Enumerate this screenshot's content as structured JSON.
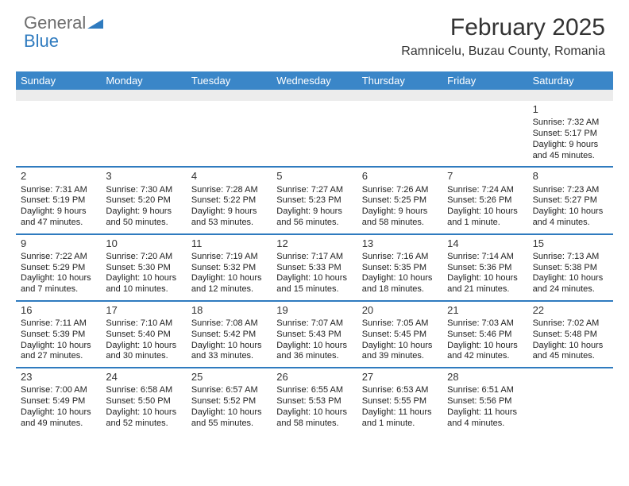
{
  "brand": {
    "word1": "General",
    "word2": "Blue"
  },
  "title": "February 2025",
  "location": "Ramnicelu, Buzau County, Romania",
  "colors": {
    "accent": "#3a86c8",
    "divider": "#2f7bbf",
    "text": "#333333",
    "spacer": "#ececec"
  },
  "layout": {
    "columns": 7,
    "cell_fontsize": 11,
    "daynum_fontsize": 13,
    "header_fontsize": 13
  },
  "day_headers": [
    "Sunday",
    "Monday",
    "Tuesday",
    "Wednesday",
    "Thursday",
    "Friday",
    "Saturday"
  ],
  "weeks": [
    [
      null,
      null,
      null,
      null,
      null,
      null,
      {
        "n": "1",
        "sr": "Sunrise: 7:32 AM",
        "ss": "Sunset: 5:17 PM",
        "d1": "Daylight: 9 hours",
        "d2": "and 45 minutes."
      }
    ],
    [
      {
        "n": "2",
        "sr": "Sunrise: 7:31 AM",
        "ss": "Sunset: 5:19 PM",
        "d1": "Daylight: 9 hours",
        "d2": "and 47 minutes."
      },
      {
        "n": "3",
        "sr": "Sunrise: 7:30 AM",
        "ss": "Sunset: 5:20 PM",
        "d1": "Daylight: 9 hours",
        "d2": "and 50 minutes."
      },
      {
        "n": "4",
        "sr": "Sunrise: 7:28 AM",
        "ss": "Sunset: 5:22 PM",
        "d1": "Daylight: 9 hours",
        "d2": "and 53 minutes."
      },
      {
        "n": "5",
        "sr": "Sunrise: 7:27 AM",
        "ss": "Sunset: 5:23 PM",
        "d1": "Daylight: 9 hours",
        "d2": "and 56 minutes."
      },
      {
        "n": "6",
        "sr": "Sunrise: 7:26 AM",
        "ss": "Sunset: 5:25 PM",
        "d1": "Daylight: 9 hours",
        "d2": "and 58 minutes."
      },
      {
        "n": "7",
        "sr": "Sunrise: 7:24 AM",
        "ss": "Sunset: 5:26 PM",
        "d1": "Daylight: 10 hours",
        "d2": "and 1 minute."
      },
      {
        "n": "8",
        "sr": "Sunrise: 7:23 AM",
        "ss": "Sunset: 5:27 PM",
        "d1": "Daylight: 10 hours",
        "d2": "and 4 minutes."
      }
    ],
    [
      {
        "n": "9",
        "sr": "Sunrise: 7:22 AM",
        "ss": "Sunset: 5:29 PM",
        "d1": "Daylight: 10 hours",
        "d2": "and 7 minutes."
      },
      {
        "n": "10",
        "sr": "Sunrise: 7:20 AM",
        "ss": "Sunset: 5:30 PM",
        "d1": "Daylight: 10 hours",
        "d2": "and 10 minutes."
      },
      {
        "n": "11",
        "sr": "Sunrise: 7:19 AM",
        "ss": "Sunset: 5:32 PM",
        "d1": "Daylight: 10 hours",
        "d2": "and 12 minutes."
      },
      {
        "n": "12",
        "sr": "Sunrise: 7:17 AM",
        "ss": "Sunset: 5:33 PM",
        "d1": "Daylight: 10 hours",
        "d2": "and 15 minutes."
      },
      {
        "n": "13",
        "sr": "Sunrise: 7:16 AM",
        "ss": "Sunset: 5:35 PM",
        "d1": "Daylight: 10 hours",
        "d2": "and 18 minutes."
      },
      {
        "n": "14",
        "sr": "Sunrise: 7:14 AM",
        "ss": "Sunset: 5:36 PM",
        "d1": "Daylight: 10 hours",
        "d2": "and 21 minutes."
      },
      {
        "n": "15",
        "sr": "Sunrise: 7:13 AM",
        "ss": "Sunset: 5:38 PM",
        "d1": "Daylight: 10 hours",
        "d2": "and 24 minutes."
      }
    ],
    [
      {
        "n": "16",
        "sr": "Sunrise: 7:11 AM",
        "ss": "Sunset: 5:39 PM",
        "d1": "Daylight: 10 hours",
        "d2": "and 27 minutes."
      },
      {
        "n": "17",
        "sr": "Sunrise: 7:10 AM",
        "ss": "Sunset: 5:40 PM",
        "d1": "Daylight: 10 hours",
        "d2": "and 30 minutes."
      },
      {
        "n": "18",
        "sr": "Sunrise: 7:08 AM",
        "ss": "Sunset: 5:42 PM",
        "d1": "Daylight: 10 hours",
        "d2": "and 33 minutes."
      },
      {
        "n": "19",
        "sr": "Sunrise: 7:07 AM",
        "ss": "Sunset: 5:43 PM",
        "d1": "Daylight: 10 hours",
        "d2": "and 36 minutes."
      },
      {
        "n": "20",
        "sr": "Sunrise: 7:05 AM",
        "ss": "Sunset: 5:45 PM",
        "d1": "Daylight: 10 hours",
        "d2": "and 39 minutes."
      },
      {
        "n": "21",
        "sr": "Sunrise: 7:03 AM",
        "ss": "Sunset: 5:46 PM",
        "d1": "Daylight: 10 hours",
        "d2": "and 42 minutes."
      },
      {
        "n": "22",
        "sr": "Sunrise: 7:02 AM",
        "ss": "Sunset: 5:48 PM",
        "d1": "Daylight: 10 hours",
        "d2": "and 45 minutes."
      }
    ],
    [
      {
        "n": "23",
        "sr": "Sunrise: 7:00 AM",
        "ss": "Sunset: 5:49 PM",
        "d1": "Daylight: 10 hours",
        "d2": "and 49 minutes."
      },
      {
        "n": "24",
        "sr": "Sunrise: 6:58 AM",
        "ss": "Sunset: 5:50 PM",
        "d1": "Daylight: 10 hours",
        "d2": "and 52 minutes."
      },
      {
        "n": "25",
        "sr": "Sunrise: 6:57 AM",
        "ss": "Sunset: 5:52 PM",
        "d1": "Daylight: 10 hours",
        "d2": "and 55 minutes."
      },
      {
        "n": "26",
        "sr": "Sunrise: 6:55 AM",
        "ss": "Sunset: 5:53 PM",
        "d1": "Daylight: 10 hours",
        "d2": "and 58 minutes."
      },
      {
        "n": "27",
        "sr": "Sunrise: 6:53 AM",
        "ss": "Sunset: 5:55 PM",
        "d1": "Daylight: 11 hours",
        "d2": "and 1 minute."
      },
      {
        "n": "28",
        "sr": "Sunrise: 6:51 AM",
        "ss": "Sunset: 5:56 PM",
        "d1": "Daylight: 11 hours",
        "d2": "and 4 minutes."
      },
      null
    ]
  ]
}
